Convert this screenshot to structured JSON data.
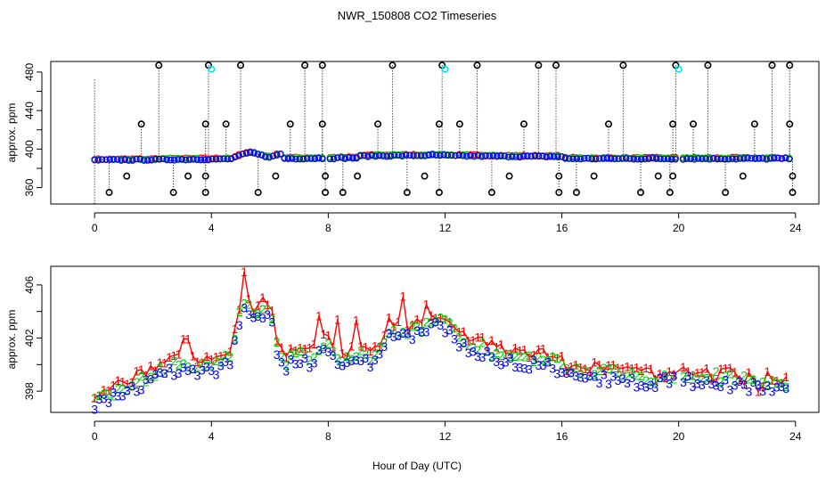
{
  "colors": {
    "s1": "#ff0000",
    "s2": "#00cc00",
    "s3": "#0000ff",
    "flag_black": "#000000",
    "flag_cyan": "#00e5ee"
  },
  "chart_data": [
    {
      "id": "top",
      "type": "scatter",
      "title": "NWR_150808  CO2 Timeseries",
      "ylabel": "approx. ppm",
      "xlim": [
        -1.5,
        24.8
      ],
      "ylim": [
        343,
        491
      ],
      "xticks": [
        0,
        4,
        8,
        12,
        16,
        20,
        24
      ],
      "yticks": [
        360,
        380,
        400,
        420,
        440,
        460,
        480
      ],
      "ytick_labels": [
        "360",
        "",
        "400",
        "",
        "440",
        "",
        "480"
      ],
      "flag_highs": [
        2.2,
        3.9,
        5.0,
        7.2,
        7.8,
        10.2,
        11.9,
        13.1,
        15.2,
        15.8,
        18.1,
        19.9,
        21.0,
        23.2,
        23.8
      ],
      "flag_cyan": [
        4.0,
        12.0,
        20.0
      ],
      "flag_430": [
        1.6,
        3.8,
        4.5,
        6.7,
        7.8,
        9.7,
        11.8,
        12.5,
        14.7,
        17.6,
        19.8,
        20.5,
        22.6,
        23.8
      ],
      "flag_350": [
        0.5,
        2.7,
        3.8,
        5.6,
        7.9,
        8.5,
        10.7,
        11.8,
        13.6,
        15.9,
        16.5,
        18.7,
        19.7,
        21.6,
        23.9
      ],
      "flag_380": [
        1.1,
        3.2,
        3.8,
        6.2,
        7.9,
        9.0,
        11.3,
        14.2,
        15.9,
        17.1,
        19.3,
        19.8,
        22.2,
        23.9
      ]
    },
    {
      "id": "bottom",
      "type": "scatter",
      "xlabel": "Hour of Day (UTC)",
      "ylabel": "approx. ppm",
      "xlim": [
        -1.5,
        24.8
      ],
      "ylim": [
        396.4,
        407.4
      ],
      "xticks": [
        0,
        4,
        8,
        12,
        16,
        20,
        24
      ],
      "yticks": [
        398,
        400,
        402,
        404,
        406
      ],
      "ytick_labels": [
        "398",
        "",
        "402",
        "",
        "406"
      ],
      "series": [
        {
          "name": "1",
          "marker": "1",
          "color": "#ff0000"
        },
        {
          "name": "2",
          "marker": "2",
          "color": "#00cc00"
        },
        {
          "name": "3",
          "marker": "3",
          "color": "#0000ff"
        }
      ],
      "baseline": [
        [
          0.0,
          397.0
        ],
        [
          0.5,
          397.4
        ],
        [
          1.0,
          397.9
        ],
        [
          1.5,
          398.3
        ],
        [
          2.0,
          398.9
        ],
        [
          2.5,
          399.4
        ],
        [
          3.0,
          399.6
        ],
        [
          3.3,
          399.4
        ],
        [
          3.6,
          399.6
        ],
        [
          4.0,
          399.4
        ],
        [
          4.4,
          399.7
        ],
        [
          4.7,
          400.5
        ],
        [
          4.9,
          403.0
        ],
        [
          5.2,
          404.4
        ],
        [
          5.5,
          403.0
        ],
        [
          5.8,
          404.0
        ],
        [
          6.1,
          402.8
        ],
        [
          6.3,
          400.3
        ],
        [
          6.6,
          399.8
        ],
        [
          7.0,
          400.5
        ],
        [
          7.4,
          400.0
        ],
        [
          7.8,
          401.2
        ],
        [
          8.2,
          400.6
        ],
        [
          8.6,
          400.0
        ],
        [
          9.0,
          400.4
        ],
        [
          9.4,
          400.0
        ],
        [
          9.8,
          400.8
        ],
        [
          10.1,
          402.4
        ],
        [
          10.5,
          402.0
        ],
        [
          11.0,
          402.2
        ],
        [
          11.6,
          402.9
        ],
        [
          12.0,
          402.7
        ],
        [
          12.5,
          401.5
        ],
        [
          13.0,
          401.0
        ],
        [
          13.5,
          400.7
        ],
        [
          14.0,
          400.2
        ],
        [
          14.5,
          400.0
        ],
        [
          15.0,
          400.0
        ],
        [
          15.5,
          399.9
        ],
        [
          16.0,
          399.6
        ],
        [
          16.5,
          399.2
        ],
        [
          17.0,
          399.0
        ],
        [
          17.5,
          398.9
        ],
        [
          18.0,
          399.0
        ],
        [
          18.5,
          398.7
        ],
        [
          19.0,
          398.4
        ],
        [
          19.5,
          398.8
        ],
        [
          20.0,
          398.9
        ],
        [
          20.5,
          398.7
        ],
        [
          21.0,
          398.9
        ],
        [
          21.5,
          398.6
        ],
        [
          22.0,
          398.4
        ],
        [
          22.5,
          398.3
        ],
        [
          23.0,
          398.2
        ],
        [
          23.5,
          398.4
        ],
        [
          23.8,
          398.0
        ]
      ]
    }
  ],
  "x_tick_labels": [
    "0",
    "4",
    "8",
    "12",
    "16",
    "20",
    "24"
  ]
}
